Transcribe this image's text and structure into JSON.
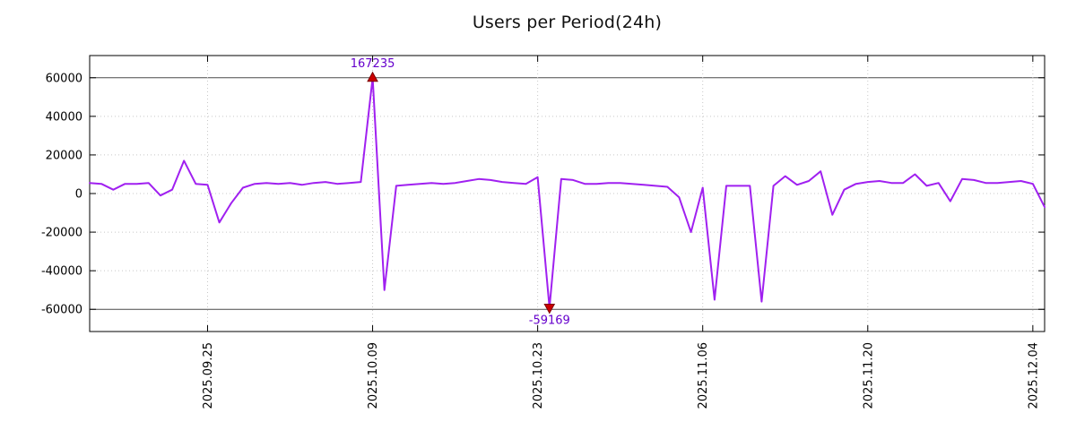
{
  "title": "Users per Period(24h)",
  "colors": {
    "series": "#a020f0",
    "border": "#000000",
    "grid": "#c8c8c8",
    "ref_line": "#4a4a4a",
    "marker_fill": "#cc0000",
    "marker_stroke": "#7a0000",
    "annotation": "#6600cc",
    "tick_text": "#000000",
    "background": "#ffffff"
  },
  "chart_data": {
    "type": "line",
    "title": "Users per Period(24h)",
    "xlabel": "",
    "ylabel": "",
    "legend": "none",
    "grid": true,
    "ylim": [
      -71500,
      71500
    ],
    "clip_y": 60000,
    "y_ticks": [
      60000,
      40000,
      20000,
      0,
      -20000,
      -40000,
      -60000
    ],
    "x_tick_labels": [
      "2025.09.25",
      "2025.10.09",
      "2025.10.23",
      "2025.11.06",
      "2025.11.20",
      "2025.12.04"
    ],
    "x": [
      "2025.09.15",
      "2025.09.16",
      "2025.09.17",
      "2025.09.18",
      "2025.09.19",
      "2025.09.20",
      "2025.09.21",
      "2025.09.22",
      "2025.09.23",
      "2025.09.24",
      "2025.09.25",
      "2025.09.26",
      "2025.09.27",
      "2025.09.28",
      "2025.09.29",
      "2025.09.30",
      "2025.10.01",
      "2025.10.02",
      "2025.10.03",
      "2025.10.04",
      "2025.10.05",
      "2025.10.06",
      "2025.10.07",
      "2025.10.08",
      "2025.10.09",
      "2025.10.10",
      "2025.10.11",
      "2025.10.12",
      "2025.10.13",
      "2025.10.14",
      "2025.10.15",
      "2025.10.16",
      "2025.10.17",
      "2025.10.18",
      "2025.10.19",
      "2025.10.20",
      "2025.10.21",
      "2025.10.22",
      "2025.10.23",
      "2025.10.24",
      "2025.10.25",
      "2025.10.26",
      "2025.10.27",
      "2025.10.28",
      "2025.10.29",
      "2025.10.30",
      "2025.10.31",
      "2025.11.01",
      "2025.11.02",
      "2025.11.03",
      "2025.11.04",
      "2025.11.05",
      "2025.11.06",
      "2025.11.07",
      "2025.11.08",
      "2025.11.09",
      "2025.11.10",
      "2025.11.11",
      "2025.11.12",
      "2025.11.13",
      "2025.11.14",
      "2025.11.15",
      "2025.11.16",
      "2025.11.17",
      "2025.11.18",
      "2025.11.19",
      "2025.11.20",
      "2025.11.21",
      "2025.11.22",
      "2025.11.23",
      "2025.11.24",
      "2025.11.25",
      "2025.11.26",
      "2025.11.27",
      "2025.11.28",
      "2025.11.29",
      "2025.11.30",
      "2025.12.01",
      "2025.12.02",
      "2025.12.03",
      "2025.12.04",
      "2025.12.05"
    ],
    "values": [
      5500,
      5000,
      2000,
      5000,
      5000,
      5500,
      -1000,
      2000,
      17000,
      5000,
      4500,
      -15000,
      -5000,
      3000,
      5000,
      5500,
      5000,
      5500,
      4500,
      5500,
      6000,
      5000,
      5500,
      6000,
      167235,
      -50000,
      4000,
      4500,
      5000,
      5500,
      5000,
      5500,
      6500,
      7500,
      7000,
      6000,
      5500,
      5000,
      8500,
      -59169,
      7500,
      7000,
      5000,
      5000,
      5500,
      5500,
      5000,
      4500,
      4000,
      3500,
      -2000,
      -20000,
      3000,
      -55000,
      4000,
      4000,
      4000,
      -56000,
      4000,
      9000,
      4500,
      6500,
      11500,
      -11000,
      2000,
      5000,
      6000,
      6500,
      5500,
      5500,
      10000,
      4000,
      5500,
      -4000,
      7500,
      7000,
      5500,
      5500,
      6000,
      6500,
      5000,
      -7000
    ],
    "annotations": {
      "max": {
        "date": "2025.10.09",
        "value": 167235,
        "label": "167235"
      },
      "min": {
        "date": "2025.10.24",
        "value": -59169,
        "label": "-59169"
      }
    }
  }
}
